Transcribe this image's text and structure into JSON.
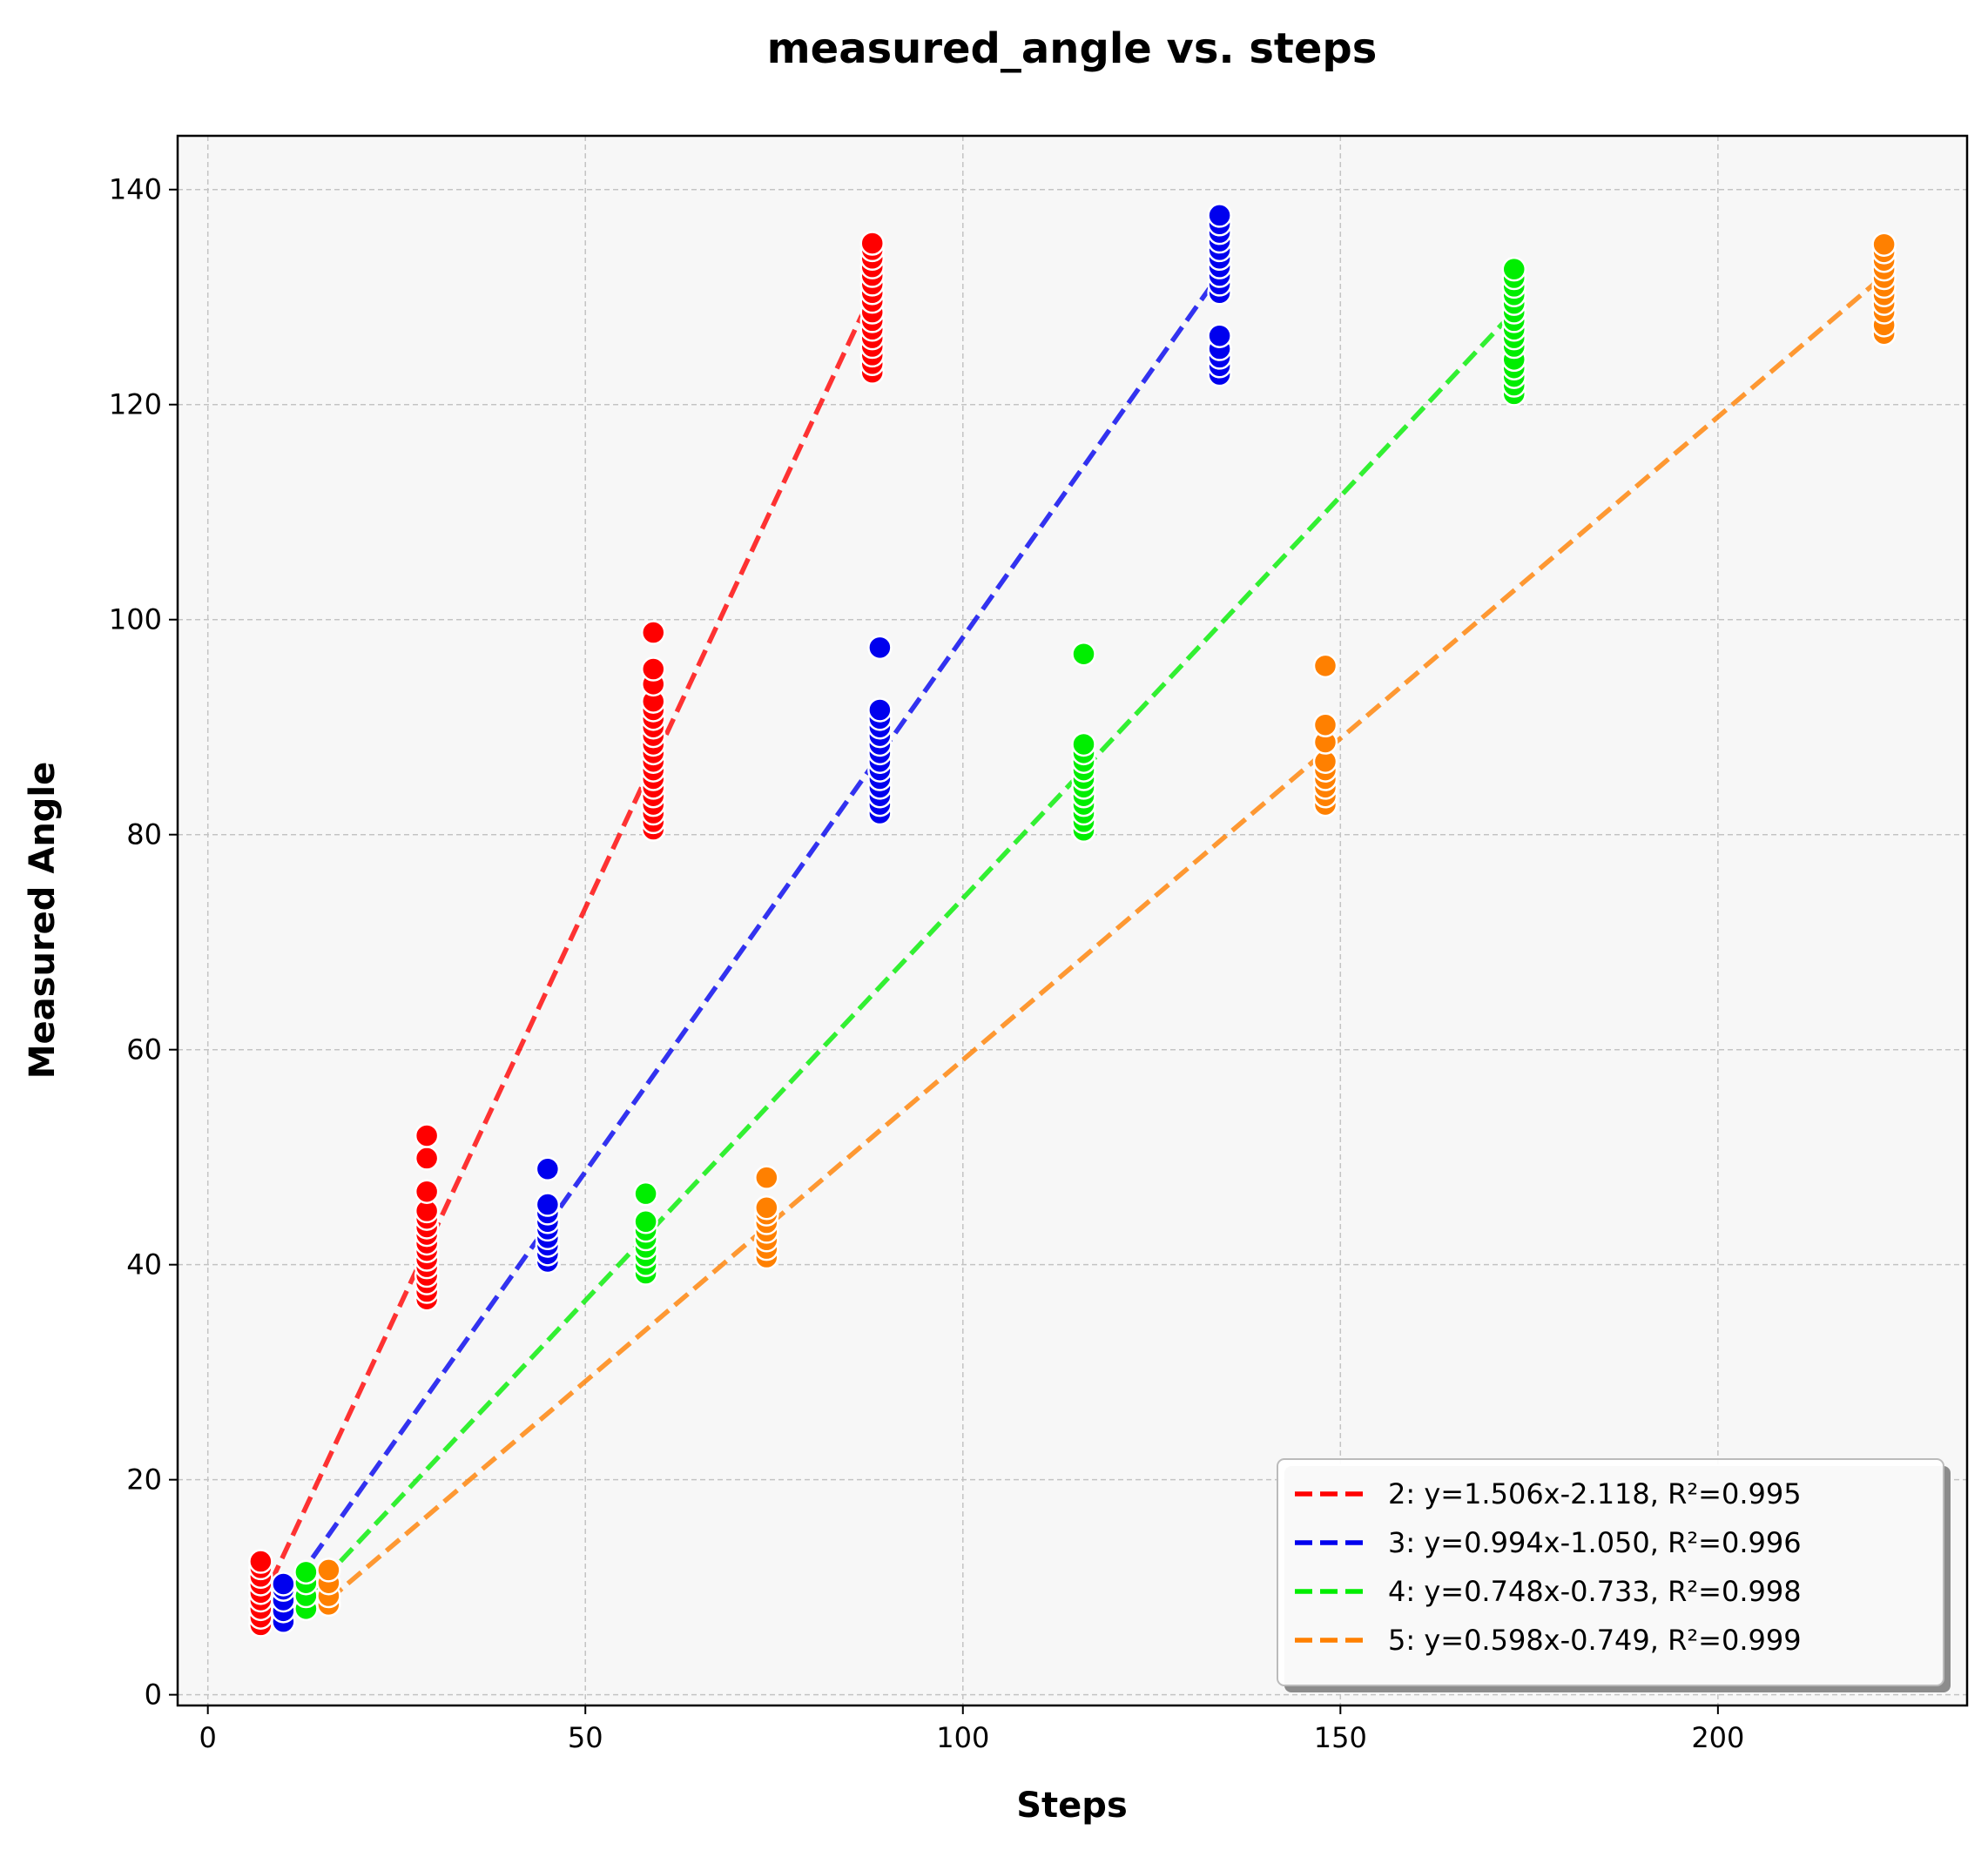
{
  "chart_data": {
    "type": "scatter",
    "title": "measured_angle vs. steps",
    "xlabel": "Steps",
    "ylabel": "Measured Angle",
    "xlim": [
      -4,
      233
    ],
    "ylim": [
      -1,
      145
    ],
    "xticks": [
      0,
      50,
      100,
      150,
      200
    ],
    "yticks": [
      0,
      20,
      40,
      60,
      80,
      100,
      120,
      140
    ],
    "grid": true,
    "legend_position": "lower-right",
    "series": [
      {
        "name": "2: y=1.506x-2.118, R²=0.995",
        "color": "#ff0000",
        "fit": {
          "slope": 1.506,
          "intercept": -2.118,
          "x_range": [
            7,
            88
          ]
        },
        "points": [
          {
            "x": 7,
            "y": 6.5
          },
          {
            "x": 7,
            "y": 7.2
          },
          {
            "x": 7,
            "y": 8.0
          },
          {
            "x": 7,
            "y": 8.8
          },
          {
            "x": 7,
            "y": 9.5
          },
          {
            "x": 7,
            "y": 10.3
          },
          {
            "x": 7,
            "y": 11.0
          },
          {
            "x": 7,
            "y": 11.8
          },
          {
            "x": 7,
            "y": 12.4
          },
          {
            "x": 29,
            "y": 36.8
          },
          {
            "x": 29,
            "y": 37.5
          },
          {
            "x": 29,
            "y": 38.3
          },
          {
            "x": 29,
            "y": 39.0
          },
          {
            "x": 29,
            "y": 39.8
          },
          {
            "x": 29,
            "y": 40.5
          },
          {
            "x": 29,
            "y": 41.3
          },
          {
            "x": 29,
            "y": 42.0
          },
          {
            "x": 29,
            "y": 42.8
          },
          {
            "x": 29,
            "y": 43.5
          },
          {
            "x": 29,
            "y": 44.3
          },
          {
            "x": 29,
            "y": 45.0
          },
          {
            "x": 29,
            "y": 46.8
          },
          {
            "x": 29,
            "y": 49.9
          },
          {
            "x": 29,
            "y": 52.0
          },
          {
            "x": 59,
            "y": 80.5
          },
          {
            "x": 59,
            "y": 81.2
          },
          {
            "x": 59,
            "y": 82.0
          },
          {
            "x": 59,
            "y": 82.8
          },
          {
            "x": 59,
            "y": 83.6
          },
          {
            "x": 59,
            "y": 84.4
          },
          {
            "x": 59,
            "y": 85.2
          },
          {
            "x": 59,
            "y": 86.0
          },
          {
            "x": 59,
            "y": 86.8
          },
          {
            "x": 59,
            "y": 87.6
          },
          {
            "x": 59,
            "y": 88.4
          },
          {
            "x": 59,
            "y": 89.2
          },
          {
            "x": 59,
            "y": 90.0
          },
          {
            "x": 59,
            "y": 90.8
          },
          {
            "x": 59,
            "y": 91.6
          },
          {
            "x": 59,
            "y": 92.4
          },
          {
            "x": 59,
            "y": 94.0
          },
          {
            "x": 59,
            "y": 95.4
          },
          {
            "x": 59,
            "y": 98.8
          },
          {
            "x": 88,
            "y": 123.0
          },
          {
            "x": 88,
            "y": 123.8
          },
          {
            "x": 88,
            "y": 124.6
          },
          {
            "x": 88,
            "y": 125.4
          },
          {
            "x": 88,
            "y": 126.2
          },
          {
            "x": 88,
            "y": 127.0
          },
          {
            "x": 88,
            "y": 127.8
          },
          {
            "x": 88,
            "y": 128.6
          },
          {
            "x": 88,
            "y": 129.6
          },
          {
            "x": 88,
            "y": 130.4
          },
          {
            "x": 88,
            "y": 131.2
          },
          {
            "x": 88,
            "y": 132.0
          },
          {
            "x": 88,
            "y": 132.8
          },
          {
            "x": 88,
            "y": 133.6
          },
          {
            "x": 88,
            "y": 134.4
          },
          {
            "x": 88,
            "y": 135.0
          }
        ]
      },
      {
        "name": "3: y=0.994x-1.050, R²=0.996",
        "color": "#0000ee",
        "fit": {
          "slope": 0.994,
          "intercept": -1.05,
          "x_range": [
            10,
            134
          ]
        },
        "points": [
          {
            "x": 10,
            "y": 6.8
          },
          {
            "x": 10,
            "y": 7.8
          },
          {
            "x": 10,
            "y": 8.8
          },
          {
            "x": 10,
            "y": 9.8
          },
          {
            "x": 10,
            "y": 10.3
          },
          {
            "x": 45,
            "y": 40.3
          },
          {
            "x": 45,
            "y": 41.0
          },
          {
            "x": 45,
            "y": 41.8
          },
          {
            "x": 45,
            "y": 42.5
          },
          {
            "x": 45,
            "y": 43.3
          },
          {
            "x": 45,
            "y": 44.0
          },
          {
            "x": 45,
            "y": 44.8
          },
          {
            "x": 45,
            "y": 45.6
          },
          {
            "x": 45,
            "y": 48.9
          },
          {
            "x": 89,
            "y": 82.0
          },
          {
            "x": 89,
            "y": 82.8
          },
          {
            "x": 89,
            "y": 83.6
          },
          {
            "x": 89,
            "y": 84.4
          },
          {
            "x": 89,
            "y": 85.2
          },
          {
            "x": 89,
            "y": 86.0
          },
          {
            "x": 89,
            "y": 86.8
          },
          {
            "x": 89,
            "y": 87.6
          },
          {
            "x": 89,
            "y": 88.4
          },
          {
            "x": 89,
            "y": 89.2
          },
          {
            "x": 89,
            "y": 90.0
          },
          {
            "x": 89,
            "y": 90.8
          },
          {
            "x": 89,
            "y": 91.6
          },
          {
            "x": 89,
            "y": 97.4
          },
          {
            "x": 134,
            "y": 122.8
          },
          {
            "x": 134,
            "y": 123.6
          },
          {
            "x": 134,
            "y": 124.4
          },
          {
            "x": 134,
            "y": 125.2
          },
          {
            "x": 134,
            "y": 126.4
          },
          {
            "x": 134,
            "y": 130.4
          },
          {
            "x": 134,
            "y": 131.2
          },
          {
            "x": 134,
            "y": 132.0
          },
          {
            "x": 134,
            "y": 132.8
          },
          {
            "x": 134,
            "y": 133.6
          },
          {
            "x": 134,
            "y": 134.4
          },
          {
            "x": 134,
            "y": 135.2
          },
          {
            "x": 134,
            "y": 136.0
          },
          {
            "x": 134,
            "y": 136.8
          },
          {
            "x": 134,
            "y": 137.6
          }
        ]
      },
      {
        "name": "4: y=0.748x-0.733, R²=0.998",
        "color": "#00ee00",
        "fit": {
          "slope": 0.748,
          "intercept": -0.733,
          "x_range": [
            13,
            174
          ]
        },
        "points": [
          {
            "x": 13,
            "y": 8.0
          },
          {
            "x": 13,
            "y": 9.2
          },
          {
            "x": 13,
            "y": 10.4
          },
          {
            "x": 13,
            "y": 11.4
          },
          {
            "x": 58,
            "y": 39.2
          },
          {
            "x": 58,
            "y": 40.0
          },
          {
            "x": 58,
            "y": 40.8
          },
          {
            "x": 58,
            "y": 41.6
          },
          {
            "x": 58,
            "y": 42.4
          },
          {
            "x": 58,
            "y": 43.2
          },
          {
            "x": 58,
            "y": 44.0
          },
          {
            "x": 58,
            "y": 46.6
          },
          {
            "x": 116,
            "y": 80.4
          },
          {
            "x": 116,
            "y": 81.2
          },
          {
            "x": 116,
            "y": 82.0
          },
          {
            "x": 116,
            "y": 82.8
          },
          {
            "x": 116,
            "y": 83.6
          },
          {
            "x": 116,
            "y": 84.4
          },
          {
            "x": 116,
            "y": 85.2
          },
          {
            "x": 116,
            "y": 86.0
          },
          {
            "x": 116,
            "y": 86.8
          },
          {
            "x": 116,
            "y": 87.6
          },
          {
            "x": 116,
            "y": 88.4
          },
          {
            "x": 116,
            "y": 96.8
          },
          {
            "x": 173,
            "y": 121.0
          },
          {
            "x": 173,
            "y": 121.8
          },
          {
            "x": 173,
            "y": 122.6
          },
          {
            "x": 173,
            "y": 123.4
          },
          {
            "x": 173,
            "y": 124.2
          },
          {
            "x": 173,
            "y": 125.4
          },
          {
            "x": 173,
            "y": 126.2
          },
          {
            "x": 173,
            "y": 127.0
          },
          {
            "x": 173,
            "y": 127.8
          },
          {
            "x": 173,
            "y": 128.6
          },
          {
            "x": 173,
            "y": 129.4
          },
          {
            "x": 173,
            "y": 130.2
          },
          {
            "x": 173,
            "y": 131.0
          },
          {
            "x": 173,
            "y": 131.8
          },
          {
            "x": 173,
            "y": 132.6
          }
        ]
      },
      {
        "name": "5: y=0.598x-0.749, R²=0.999",
        "color": "#ff8000",
        "fit": {
          "slope": 0.598,
          "intercept": -0.749,
          "x_range": [
            16,
            222
          ]
        },
        "points": [
          {
            "x": 16,
            "y": 8.4
          },
          {
            "x": 16,
            "y": 9.2
          },
          {
            "x": 16,
            "y": 10.4
          },
          {
            "x": 16,
            "y": 11.6
          },
          {
            "x": 74,
            "y": 40.7
          },
          {
            "x": 74,
            "y": 41.5
          },
          {
            "x": 74,
            "y": 42.3
          },
          {
            "x": 74,
            "y": 43.1
          },
          {
            "x": 74,
            "y": 43.9
          },
          {
            "x": 74,
            "y": 44.7
          },
          {
            "x": 74,
            "y": 45.3
          },
          {
            "x": 74,
            "y": 48.1
          },
          {
            "x": 148,
            "y": 82.8
          },
          {
            "x": 148,
            "y": 83.6
          },
          {
            "x": 148,
            "y": 84.4
          },
          {
            "x": 148,
            "y": 85.2
          },
          {
            "x": 148,
            "y": 86.0
          },
          {
            "x": 148,
            "y": 86.8
          },
          {
            "x": 148,
            "y": 88.6
          },
          {
            "x": 148,
            "y": 90.2
          },
          {
            "x": 148,
            "y": 95.7
          },
          {
            "x": 222,
            "y": 126.6
          },
          {
            "x": 222,
            "y": 127.4
          },
          {
            "x": 222,
            "y": 128.6
          },
          {
            "x": 222,
            "y": 129.4
          },
          {
            "x": 222,
            "y": 130.2
          },
          {
            "x": 222,
            "y": 131.0
          },
          {
            "x": 222,
            "y": 131.8
          },
          {
            "x": 222,
            "y": 132.6
          },
          {
            "x": 222,
            "y": 133.4
          },
          {
            "x": 222,
            "y": 134.2
          },
          {
            "x": 222,
            "y": 134.9
          }
        ]
      }
    ]
  }
}
